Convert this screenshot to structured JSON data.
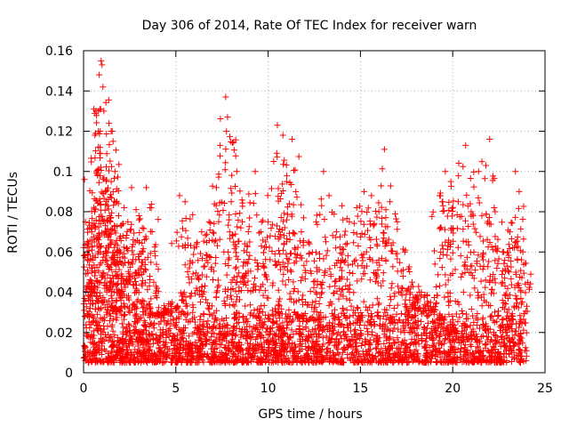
{
  "chart_data": {
    "type": "scatter",
    "title": "Day 306 of 2014, Rate Of TEC Index for receiver warn",
    "xlabel": "GPS time / hours",
    "ylabel": "ROTI / TECUs",
    "xlim": [
      0,
      25
    ],
    "ylim": [
      0,
      0.16
    ],
    "xticks": [
      0,
      5,
      10,
      15,
      20,
      25
    ],
    "yticks": [
      0,
      0.02,
      0.04,
      0.06,
      0.08,
      0.1,
      0.12,
      0.14,
      0.16
    ],
    "xtick_labels": [
      "0",
      "5",
      "10",
      "15",
      "20",
      "25"
    ],
    "ytick_labels": [
      "0",
      "0.02",
      "0.04",
      "0.06",
      "0.08",
      "0.1",
      "0.12",
      "0.14",
      "0.16"
    ],
    "grid": true,
    "marker": "plus",
    "marker_color": "#ff0000",
    "time_span_hours": [
      0,
      24
    ],
    "baseline_band": [
      0.005,
      0.03
    ],
    "series": [
      {
        "name": "ROTI",
        "points": [
          {
            "x": 0.05,
            "y": 0.096
          },
          {
            "x": 0.1,
            "y": 0.075
          },
          {
            "x": 0.2,
            "y": 0.062
          },
          {
            "x": 0.3,
            "y": 0.045
          },
          {
            "x": 0.45,
            "y": 0.07
          },
          {
            "x": 0.6,
            "y": 0.08
          },
          {
            "x": 0.7,
            "y": 0.1
          },
          {
            "x": 0.8,
            "y": 0.13
          },
          {
            "x": 0.85,
            "y": 0.148
          },
          {
            "x": 0.9,
            "y": 0.12
          },
          {
            "x": 0.95,
            "y": 0.155
          },
          {
            "x": 1.0,
            "y": 0.153
          },
          {
            "x": 1.05,
            "y": 0.142
          },
          {
            "x": 1.1,
            "y": 0.13
          },
          {
            "x": 1.2,
            "y": 0.09
          },
          {
            "x": 1.3,
            "y": 0.083
          },
          {
            "x": 1.45,
            "y": 0.075
          },
          {
            "x": 1.5,
            "y": 0.095
          },
          {
            "x": 1.55,
            "y": 0.12
          },
          {
            "x": 1.6,
            "y": 0.115
          },
          {
            "x": 1.7,
            "y": 0.1
          },
          {
            "x": 1.8,
            "y": 0.085
          },
          {
            "x": 1.9,
            "y": 0.078
          },
          {
            "x": 2.0,
            "y": 0.06
          },
          {
            "x": 2.2,
            "y": 0.082
          },
          {
            "x": 2.4,
            "y": 0.075
          },
          {
            "x": 2.6,
            "y": 0.092
          },
          {
            "x": 2.8,
            "y": 0.065
          },
          {
            "x": 3.0,
            "y": 0.078
          },
          {
            "x": 3.2,
            "y": 0.06
          },
          {
            "x": 3.4,
            "y": 0.092
          },
          {
            "x": 3.6,
            "y": 0.082
          },
          {
            "x": 3.8,
            "y": 0.045
          },
          {
            "x": 4.0,
            "y": 0.028
          },
          {
            "x": 4.4,
            "y": 0.03
          },
          {
            "x": 4.8,
            "y": 0.035
          },
          {
            "x": 5.2,
            "y": 0.088
          },
          {
            "x": 5.5,
            "y": 0.085
          },
          {
            "x": 6.0,
            "y": 0.062
          },
          {
            "x": 6.4,
            "y": 0.07
          },
          {
            "x": 6.8,
            "y": 0.075
          },
          {
            "x": 7.2,
            "y": 0.092
          },
          {
            "x": 7.4,
            "y": 0.113
          },
          {
            "x": 7.7,
            "y": 0.137
          },
          {
            "x": 7.8,
            "y": 0.127
          },
          {
            "x": 8.0,
            "y": 0.085
          },
          {
            "x": 8.3,
            "y": 0.1
          },
          {
            "x": 8.6,
            "y": 0.075
          },
          {
            "x": 9.0,
            "y": 0.065
          },
          {
            "x": 9.3,
            "y": 0.1
          },
          {
            "x": 9.6,
            "y": 0.07
          },
          {
            "x": 10.0,
            "y": 0.075
          },
          {
            "x": 10.3,
            "y": 0.105
          },
          {
            "x": 10.5,
            "y": 0.123
          },
          {
            "x": 10.8,
            "y": 0.118
          },
          {
            "x": 11.0,
            "y": 0.095
          },
          {
            "x": 11.3,
            "y": 0.116
          },
          {
            "x": 11.5,
            "y": 0.09
          },
          {
            "x": 11.8,
            "y": 0.07
          },
          {
            "x": 12.2,
            "y": 0.065
          },
          {
            "x": 12.6,
            "y": 0.075
          },
          {
            "x": 13.0,
            "y": 0.1
          },
          {
            "x": 13.3,
            "y": 0.088
          },
          {
            "x": 13.7,
            "y": 0.07
          },
          {
            "x": 14.0,
            "y": 0.083
          },
          {
            "x": 14.4,
            "y": 0.075
          },
          {
            "x": 14.8,
            "y": 0.082
          },
          {
            "x": 15.2,
            "y": 0.09
          },
          {
            "x": 15.6,
            "y": 0.088
          },
          {
            "x": 16.0,
            "y": 0.08
          },
          {
            "x": 16.3,
            "y": 0.111
          },
          {
            "x": 16.6,
            "y": 0.085
          },
          {
            "x": 17.0,
            "y": 0.075
          },
          {
            "x": 17.4,
            "y": 0.06
          },
          {
            "x": 17.8,
            "y": 0.045
          },
          {
            "x": 18.3,
            "y": 0.04
          },
          {
            "x": 18.8,
            "y": 0.035
          },
          {
            "x": 19.3,
            "y": 0.088
          },
          {
            "x": 19.6,
            "y": 0.1
          },
          {
            "x": 19.9,
            "y": 0.095
          },
          {
            "x": 20.3,
            "y": 0.085
          },
          {
            "x": 20.7,
            "y": 0.113
          },
          {
            "x": 21.0,
            "y": 0.08
          },
          {
            "x": 21.4,
            "y": 0.1
          },
          {
            "x": 21.8,
            "y": 0.103
          },
          {
            "x": 22.0,
            "y": 0.116
          },
          {
            "x": 22.3,
            "y": 0.08
          },
          {
            "x": 22.7,
            "y": 0.06
          },
          {
            "x": 23.1,
            "y": 0.07
          },
          {
            "x": 23.4,
            "y": 0.1
          },
          {
            "x": 23.6,
            "y": 0.09
          },
          {
            "x": 23.8,
            "y": 0.06
          }
        ]
      }
    ]
  }
}
